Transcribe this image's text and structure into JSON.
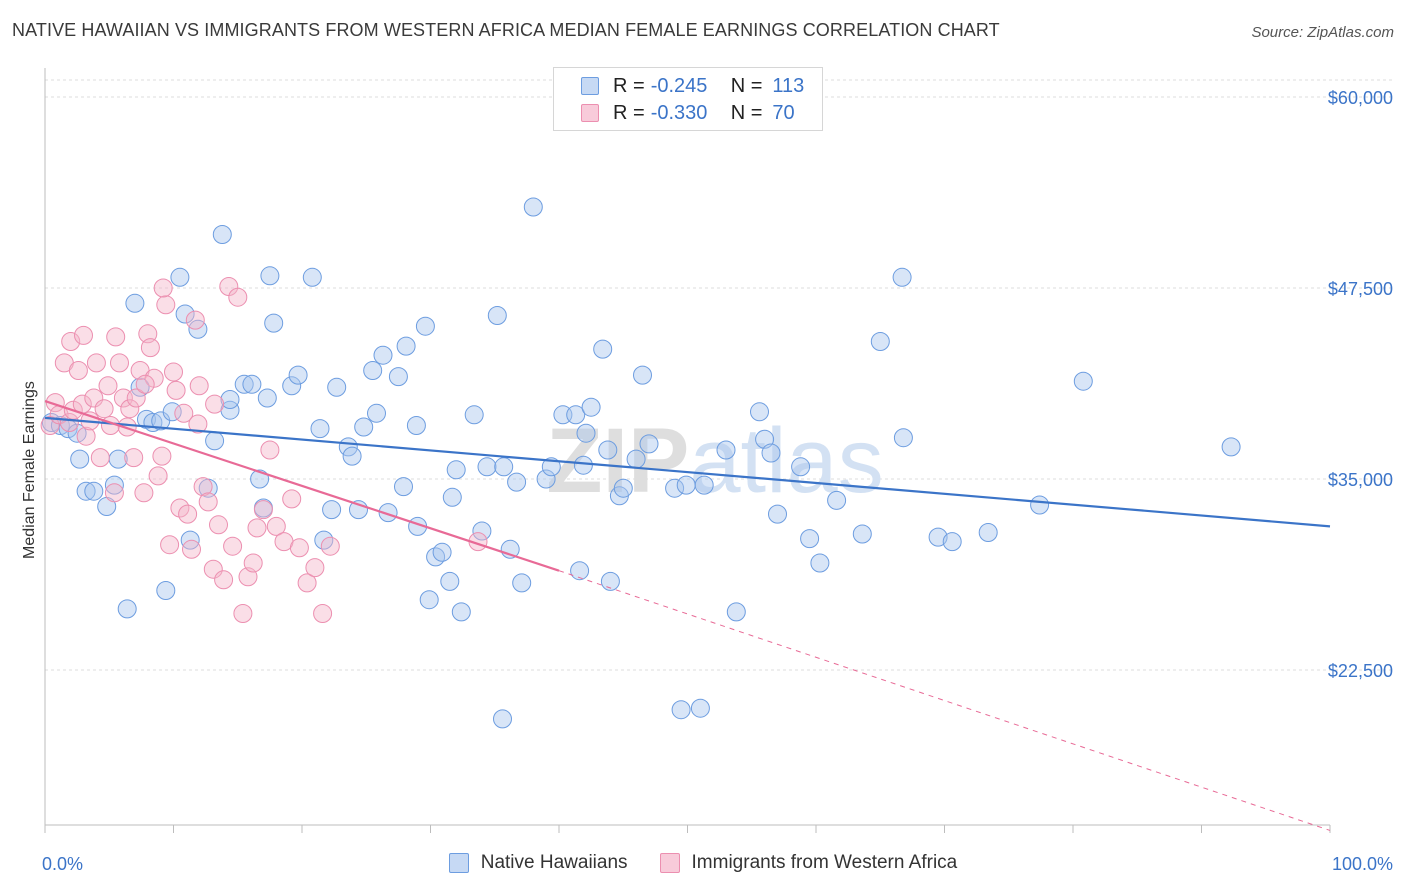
{
  "title": "NATIVE HAWAIIAN VS IMMIGRANTS FROM WESTERN AFRICA MEDIAN FEMALE EARNINGS CORRELATION CHART",
  "source": "Source: ZipAtlas.com",
  "watermark": "ZIPatlas",
  "colors": {
    "blue": "#3b74c8",
    "blue_fill": "#a9c6ee",
    "pink": "#e86a96",
    "pink_fill": "#f4b5ca",
    "grid": "#d9d9d9",
    "tick_label": "#3b74c8"
  },
  "legend_top": {
    "rows": [
      {
        "r_label": "R =",
        "r_value": "-0.245",
        "n_label": "N =",
        "n_value": "113"
      },
      {
        "r_label": "R =",
        "r_value": "-0.330",
        "n_label": "N =",
        "n_value": "70"
      }
    ]
  },
  "legend_bottom": [
    "Native Hawaiians",
    "Immigrants from Western Africa"
  ],
  "chart_data": {
    "type": "scatter",
    "ylabel": "Median Female Earnings",
    "x_tick_labels": [
      "0.0%",
      "100.0%"
    ],
    "y_tick_labels": [
      "$22,500",
      "$35,000",
      "$47,500",
      "$60,000"
    ],
    "y_ticks": [
      22500,
      35000,
      47500,
      60000
    ],
    "xlim": [
      0,
      100
    ],
    "ylim": [
      12500,
      61000
    ],
    "grid": true,
    "series": [
      {
        "name": "Native Hawaiians",
        "color": "#3b74c8",
        "points": [
          [
            0.5,
            38.7
          ],
          [
            1.2,
            38.5
          ],
          [
            1.8,
            38.3
          ],
          [
            2.5,
            38.0
          ],
          [
            2.7,
            36.3
          ],
          [
            3.2,
            34.2
          ],
          [
            3.8,
            34.2
          ],
          [
            4.8,
            33.2
          ],
          [
            5.4,
            34.6
          ],
          [
            5.7,
            36.3
          ],
          [
            6.4,
            26.5
          ],
          [
            7.0,
            46.5
          ],
          [
            7.4,
            41.0
          ],
          [
            7.9,
            38.9
          ],
          [
            8.4,
            38.7
          ],
          [
            9.0,
            38.8
          ],
          [
            9.4,
            27.7
          ],
          [
            9.9,
            39.4
          ],
          [
            10.5,
            48.2
          ],
          [
            10.9,
            45.8
          ],
          [
            11.3,
            31.0
          ],
          [
            11.9,
            44.8
          ],
          [
            12.7,
            34.4
          ],
          [
            13.2,
            37.5
          ],
          [
            13.8,
            51.0
          ],
          [
            14.4,
            39.5
          ],
          [
            14.4,
            40.2
          ],
          [
            15.5,
            41.2
          ],
          [
            16.1,
            41.2
          ],
          [
            16.7,
            35.0
          ],
          [
            17.0,
            33.1
          ],
          [
            17.3,
            40.3
          ],
          [
            17.5,
            48.3
          ],
          [
            17.8,
            45.2
          ],
          [
            19.2,
            41.1
          ],
          [
            19.7,
            41.8
          ],
          [
            20.8,
            48.2
          ],
          [
            21.4,
            38.3
          ],
          [
            21.7,
            31.0
          ],
          [
            22.3,
            33.0
          ],
          [
            22.7,
            41.0
          ],
          [
            23.6,
            37.1
          ],
          [
            23.9,
            36.5
          ],
          [
            24.4,
            33.0
          ],
          [
            24.8,
            38.4
          ],
          [
            25.5,
            42.1
          ],
          [
            25.8,
            39.3
          ],
          [
            26.3,
            43.1
          ],
          [
            26.7,
            32.8
          ],
          [
            27.5,
            41.7
          ],
          [
            27.9,
            34.5
          ],
          [
            28.1,
            43.7
          ],
          [
            28.9,
            38.5
          ],
          [
            29.6,
            45.0
          ],
          [
            29.9,
            27.1
          ],
          [
            30.4,
            29.9
          ],
          [
            30.9,
            30.2
          ],
          [
            31.5,
            28.3
          ],
          [
            31.7,
            33.8
          ],
          [
            32.0,
            35.6
          ],
          [
            32.4,
            26.3
          ],
          [
            33.4,
            39.2
          ],
          [
            34.0,
            31.6
          ],
          [
            34.4,
            35.8
          ],
          [
            35.2,
            45.7
          ],
          [
            35.7,
            35.8
          ],
          [
            36.7,
            34.8
          ],
          [
            37.1,
            28.2
          ],
          [
            38.0,
            52.8
          ],
          [
            39.0,
            35.0
          ],
          [
            39.4,
            35.8
          ],
          [
            40.3,
            39.2
          ],
          [
            41.3,
            39.2
          ],
          [
            41.6,
            29.0
          ],
          [
            41.9,
            35.9
          ],
          [
            42.1,
            38.0
          ],
          [
            42.5,
            39.7
          ],
          [
            43.4,
            43.5
          ],
          [
            44.0,
            28.3
          ],
          [
            44.7,
            33.9
          ],
          [
            45.0,
            34.4
          ],
          [
            46.0,
            36.3
          ],
          [
            46.5,
            41.8
          ],
          [
            47.0,
            37.3
          ],
          [
            49.0,
            34.4
          ],
          [
            49.5,
            19.9
          ],
          [
            49.9,
            34.6
          ],
          [
            51.0,
            20.0
          ],
          [
            51.3,
            34.6
          ],
          [
            53.0,
            36.9
          ],
          [
            53.8,
            26.3
          ],
          [
            55.6,
            39.4
          ],
          [
            56.0,
            37.6
          ],
          [
            56.5,
            36.7
          ],
          [
            57.0,
            32.7
          ],
          [
            58.8,
            35.8
          ],
          [
            59.5,
            31.1
          ],
          [
            60.3,
            29.5
          ],
          [
            61.6,
            33.6
          ],
          [
            63.6,
            31.4
          ],
          [
            66.7,
            48.2
          ],
          [
            65.0,
            44.0
          ],
          [
            66.8,
            37.7
          ],
          [
            69.5,
            31.2
          ],
          [
            70.6,
            30.9
          ],
          [
            73.4,
            31.5
          ],
          [
            77.4,
            33.3
          ],
          [
            80.8,
            41.4
          ],
          [
            92.3,
            37.1
          ],
          [
            35.6,
            19.3
          ],
          [
            36.2,
            30.4
          ],
          [
            29.0,
            31.9
          ],
          [
            43.8,
            36.9
          ]
        ]
      },
      {
        "name": "Immigrants from Western Africa",
        "color": "#e86a96",
        "points": [
          [
            0.4,
            38.5
          ],
          [
            0.8,
            40.0
          ],
          [
            1.1,
            39.2
          ],
          [
            1.5,
            42.6
          ],
          [
            1.9,
            38.7
          ],
          [
            2.2,
            39.5
          ],
          [
            2.6,
            42.1
          ],
          [
            2.9,
            39.9
          ],
          [
            3.2,
            37.8
          ],
          [
            3.5,
            38.8
          ],
          [
            3.8,
            40.3
          ],
          [
            4.0,
            42.6
          ],
          [
            4.3,
            36.4
          ],
          [
            4.6,
            39.6
          ],
          [
            4.9,
            41.1
          ],
          [
            5.1,
            38.5
          ],
          [
            5.4,
            34.1
          ],
          [
            5.8,
            42.6
          ],
          [
            6.1,
            40.3
          ],
          [
            6.4,
            38.4
          ],
          [
            6.6,
            39.6
          ],
          [
            6.9,
            36.4
          ],
          [
            7.1,
            40.3
          ],
          [
            7.4,
            42.1
          ],
          [
            7.7,
            34.1
          ],
          [
            8.0,
            44.5
          ],
          [
            8.2,
            43.6
          ],
          [
            8.5,
            41.6
          ],
          [
            8.8,
            35.2
          ],
          [
            9.1,
            36.5
          ],
          [
            9.4,
            46.4
          ],
          [
            9.7,
            30.7
          ],
          [
            10.0,
            42.0
          ],
          [
            10.2,
            40.8
          ],
          [
            10.5,
            33.1
          ],
          [
            10.8,
            39.3
          ],
          [
            11.1,
            32.7
          ],
          [
            11.4,
            30.4
          ],
          [
            11.7,
            45.4
          ],
          [
            12.0,
            41.1
          ],
          [
            12.3,
            34.5
          ],
          [
            12.7,
            33.5
          ],
          [
            13.1,
            29.1
          ],
          [
            13.5,
            32.0
          ],
          [
            13.9,
            28.4
          ],
          [
            14.3,
            47.6
          ],
          [
            14.6,
            30.6
          ],
          [
            15.0,
            46.9
          ],
          [
            15.4,
            26.2
          ],
          [
            15.8,
            28.6
          ],
          [
            16.2,
            29.5
          ],
          [
            16.5,
            31.8
          ],
          [
            17.0,
            33.0
          ],
          [
            17.5,
            36.9
          ],
          [
            18.0,
            31.9
          ],
          [
            18.6,
            30.9
          ],
          [
            19.2,
            33.7
          ],
          [
            19.8,
            30.5
          ],
          [
            20.4,
            28.2
          ],
          [
            21.0,
            29.2
          ],
          [
            21.6,
            26.2
          ],
          [
            22.2,
            30.6
          ],
          [
            2.0,
            44.0
          ],
          [
            3.0,
            44.4
          ],
          [
            5.5,
            44.3
          ],
          [
            7.8,
            41.2
          ],
          [
            9.2,
            47.5
          ],
          [
            11.9,
            38.6
          ],
          [
            13.2,
            39.9
          ],
          [
            33.7,
            30.9
          ]
        ]
      }
    ],
    "trend_lines": [
      {
        "series": "Native Hawaiians",
        "from": [
          0,
          39.0
        ],
        "to": [
          100,
          31.9
        ],
        "style": "solid"
      },
      {
        "series": "Immigrants from Western Africa",
        "from": [
          0,
          40.1
        ],
        "to": [
          40,
          29.0
        ],
        "style": "solid"
      },
      {
        "series": "Immigrants from Western Africa",
        "from": [
          40,
          29.0
        ],
        "to": [
          100,
          12.0
        ],
        "style": "dashed"
      }
    ],
    "y_units_note": "values in thousands of dollars"
  }
}
